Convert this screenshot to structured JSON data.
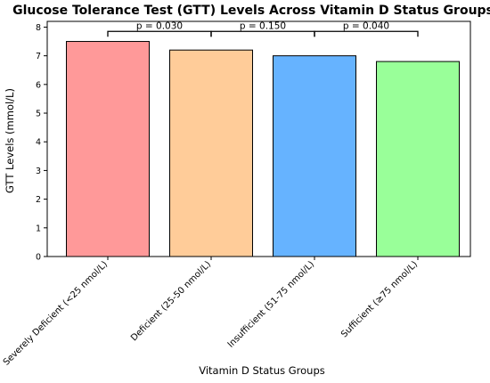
{
  "chart_data": {
    "type": "bar",
    "title": "Glucose Tolerance Test (GTT) Levels Across Vitamin D Status Groups",
    "xlabel": "Vitamin D Status Groups",
    "ylabel": "GTT Levels (mmol/L)",
    "categories": [
      "Severely Deficient (<25 nmol/L)",
      "Deficient (25-50 nmol/L)",
      "Insufficient (51-75 nmol/L)",
      "Sufficient (≥75 nmol/L)"
    ],
    "values": [
      7.5,
      7.2,
      7.0,
      6.8
    ],
    "colors": [
      "#ff9999",
      "#ffcc99",
      "#66b3ff",
      "#99ff99"
    ],
    "edge_color": "#000000",
    "ylim": [
      0,
      8.2
    ],
    "yticks": [
      0,
      1,
      2,
      3,
      4,
      5,
      6,
      7,
      8
    ],
    "grid": false,
    "annotations": [
      {
        "from": 0,
        "to": 1,
        "text": "p = 0.030",
        "y": 7.85
      },
      {
        "from": 1,
        "to": 2,
        "text": "p = 0.150",
        "y": 7.85
      },
      {
        "from": 2,
        "to": 3,
        "text": "p = 0.040",
        "y": 7.85
      }
    ]
  }
}
